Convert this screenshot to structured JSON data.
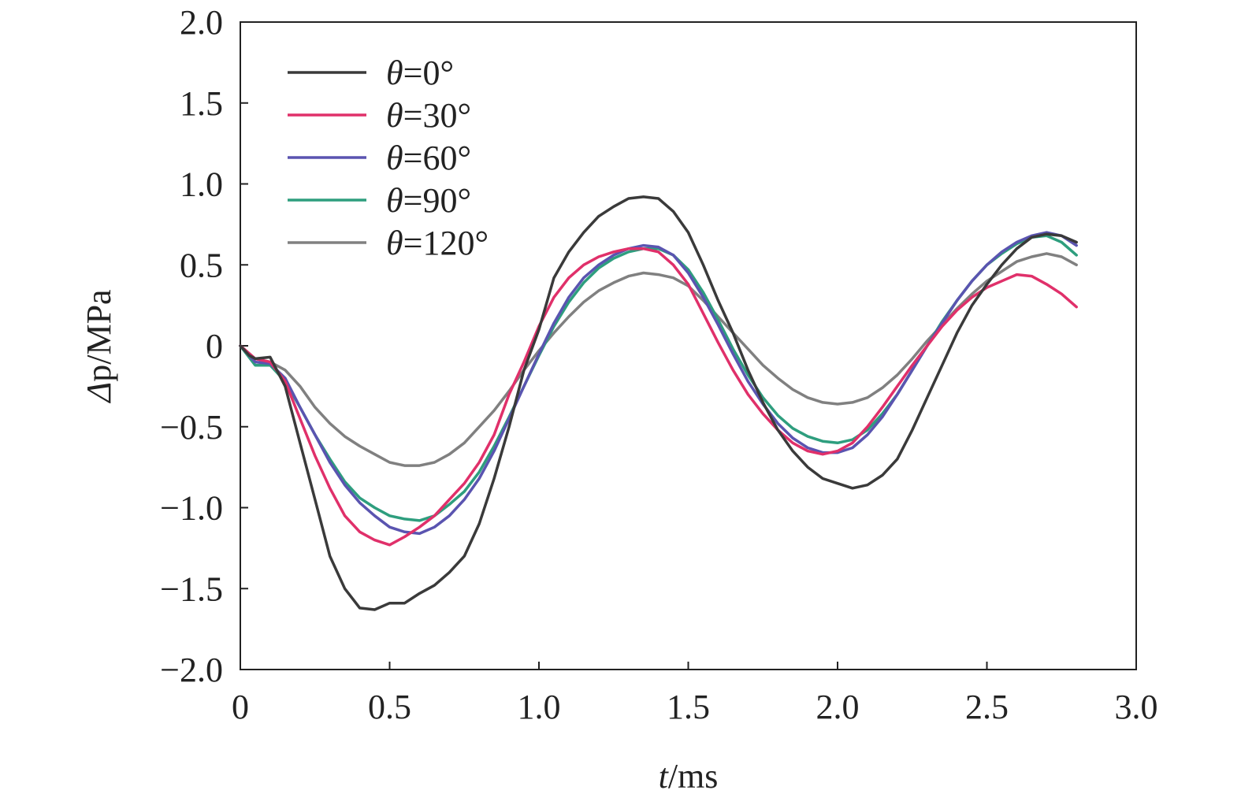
{
  "chart_data": {
    "type": "line",
    "xlabel_var": "t",
    "xlabel_unit": "/ms",
    "ylabel_var": "Δ",
    "ylabel_unit": "p/MPa",
    "xlim": [
      0,
      3.0
    ],
    "ylim": [
      -2.0,
      2.0
    ],
    "xticks": [
      0,
      0.5,
      1.0,
      1.5,
      2.0,
      2.5,
      3.0
    ],
    "xtick_labels": [
      "0",
      "0.5",
      "1.0",
      "1.5",
      "2.0",
      "2.5",
      "3.0"
    ],
    "yticks": [
      2.0,
      1.5,
      1.0,
      0.5,
      0,
      -0.5,
      -1.0,
      -1.5,
      -2.0
    ],
    "ytick_labels": [
      "2.0",
      "1.5",
      "1.0",
      "0.5",
      "0",
      "−0.5",
      "−1.0",
      "−1.5",
      "−2.0"
    ],
    "grid": false,
    "legend_position": "top-left",
    "series": [
      {
        "name_var": "θ",
        "name_value": "=0°",
        "color": "#3a3a3a",
        "points": [
          [
            0,
            0
          ],
          [
            0.03,
            -0.06
          ],
          [
            0.05,
            -0.08
          ],
          [
            0.1,
            -0.07
          ],
          [
            0.15,
            -0.25
          ],
          [
            0.2,
            -0.6
          ],
          [
            0.25,
            -0.95
          ],
          [
            0.3,
            -1.3
          ],
          [
            0.35,
            -1.5
          ],
          [
            0.4,
            -1.62
          ],
          [
            0.45,
            -1.63
          ],
          [
            0.5,
            -1.59
          ],
          [
            0.55,
            -1.59
          ],
          [
            0.6,
            -1.53
          ],
          [
            0.65,
            -1.48
          ],
          [
            0.7,
            -1.4
          ],
          [
            0.75,
            -1.3
          ],
          [
            0.8,
            -1.1
          ],
          [
            0.85,
            -0.82
          ],
          [
            0.9,
            -0.5
          ],
          [
            0.95,
            -0.15
          ],
          [
            1.0,
            0.1
          ],
          [
            1.05,
            0.42
          ],
          [
            1.1,
            0.58
          ],
          [
            1.15,
            0.7
          ],
          [
            1.2,
            0.8
          ],
          [
            1.25,
            0.86
          ],
          [
            1.3,
            0.91
          ],
          [
            1.35,
            0.92
          ],
          [
            1.4,
            0.91
          ],
          [
            1.45,
            0.83
          ],
          [
            1.5,
            0.7
          ],
          [
            1.55,
            0.5
          ],
          [
            1.6,
            0.28
          ],
          [
            1.65,
            0.08
          ],
          [
            1.7,
            -0.15
          ],
          [
            1.75,
            -0.35
          ],
          [
            1.8,
            -0.52
          ],
          [
            1.85,
            -0.65
          ],
          [
            1.9,
            -0.75
          ],
          [
            1.95,
            -0.82
          ],
          [
            2.0,
            -0.85
          ],
          [
            2.05,
            -0.88
          ],
          [
            2.1,
            -0.86
          ],
          [
            2.15,
            -0.8
          ],
          [
            2.2,
            -0.7
          ],
          [
            2.25,
            -0.52
          ],
          [
            2.3,
            -0.32
          ],
          [
            2.35,
            -0.12
          ],
          [
            2.4,
            0.08
          ],
          [
            2.45,
            0.25
          ],
          [
            2.5,
            0.38
          ],
          [
            2.55,
            0.5
          ],
          [
            2.6,
            0.6
          ],
          [
            2.65,
            0.67
          ],
          [
            2.7,
            0.69
          ],
          [
            2.75,
            0.68
          ],
          [
            2.8,
            0.64
          ]
        ]
      },
      {
        "name_var": "θ",
        "name_value": "=30°",
        "color": "#e0306a",
        "points": [
          [
            0,
            0
          ],
          [
            0.05,
            -0.08
          ],
          [
            0.1,
            -0.1
          ],
          [
            0.15,
            -0.22
          ],
          [
            0.2,
            -0.45
          ],
          [
            0.25,
            -0.68
          ],
          [
            0.3,
            -0.88
          ],
          [
            0.35,
            -1.05
          ],
          [
            0.4,
            -1.15
          ],
          [
            0.45,
            -1.2
          ],
          [
            0.5,
            -1.23
          ],
          [
            0.55,
            -1.18
          ],
          [
            0.6,
            -1.12
          ],
          [
            0.65,
            -1.05
          ],
          [
            0.7,
            -0.95
          ],
          [
            0.75,
            -0.85
          ],
          [
            0.8,
            -0.72
          ],
          [
            0.85,
            -0.55
          ],
          [
            0.9,
            -0.3
          ],
          [
            0.95,
            -0.1
          ],
          [
            1.0,
            0.12
          ],
          [
            1.05,
            0.3
          ],
          [
            1.1,
            0.42
          ],
          [
            1.15,
            0.5
          ],
          [
            1.2,
            0.55
          ],
          [
            1.25,
            0.58
          ],
          [
            1.3,
            0.6
          ],
          [
            1.35,
            0.6
          ],
          [
            1.4,
            0.58
          ],
          [
            1.45,
            0.5
          ],
          [
            1.5,
            0.38
          ],
          [
            1.55,
            0.2
          ],
          [
            1.6,
            0.02
          ],
          [
            1.65,
            -0.15
          ],
          [
            1.7,
            -0.3
          ],
          [
            1.75,
            -0.42
          ],
          [
            1.8,
            -0.52
          ],
          [
            1.85,
            -0.6
          ],
          [
            1.9,
            -0.65
          ],
          [
            1.95,
            -0.67
          ],
          [
            2.0,
            -0.65
          ],
          [
            2.05,
            -0.6
          ],
          [
            2.1,
            -0.5
          ],
          [
            2.15,
            -0.38
          ],
          [
            2.2,
            -0.25
          ],
          [
            2.25,
            -0.12
          ],
          [
            2.3,
            0.0
          ],
          [
            2.35,
            0.12
          ],
          [
            2.4,
            0.22
          ],
          [
            2.45,
            0.3
          ],
          [
            2.5,
            0.36
          ],
          [
            2.55,
            0.4
          ],
          [
            2.6,
            0.44
          ],
          [
            2.65,
            0.43
          ],
          [
            2.7,
            0.38
          ],
          [
            2.75,
            0.32
          ],
          [
            2.8,
            0.24
          ]
        ]
      },
      {
        "name_var": "θ",
        "name_value": "=60°",
        "color": "#5a54b0",
        "points": [
          [
            0,
            0
          ],
          [
            0.05,
            -0.1
          ],
          [
            0.1,
            -0.11
          ],
          [
            0.15,
            -0.2
          ],
          [
            0.2,
            -0.38
          ],
          [
            0.25,
            -0.55
          ],
          [
            0.3,
            -0.72
          ],
          [
            0.35,
            -0.86
          ],
          [
            0.4,
            -0.97
          ],
          [
            0.45,
            -1.05
          ],
          [
            0.5,
            -1.12
          ],
          [
            0.55,
            -1.15
          ],
          [
            0.6,
            -1.16
          ],
          [
            0.65,
            -1.12
          ],
          [
            0.7,
            -1.05
          ],
          [
            0.75,
            -0.95
          ],
          [
            0.8,
            -0.82
          ],
          [
            0.85,
            -0.65
          ],
          [
            0.9,
            -0.45
          ],
          [
            0.95,
            -0.25
          ],
          [
            1.0,
            -0.05
          ],
          [
            1.05,
            0.14
          ],
          [
            1.1,
            0.3
          ],
          [
            1.15,
            0.42
          ],
          [
            1.2,
            0.5
          ],
          [
            1.25,
            0.56
          ],
          [
            1.3,
            0.6
          ],
          [
            1.35,
            0.62
          ],
          [
            1.4,
            0.61
          ],
          [
            1.45,
            0.56
          ],
          [
            1.5,
            0.45
          ],
          [
            1.55,
            0.3
          ],
          [
            1.6,
            0.13
          ],
          [
            1.65,
            -0.05
          ],
          [
            1.7,
            -0.22
          ],
          [
            1.75,
            -0.36
          ],
          [
            1.8,
            -0.48
          ],
          [
            1.85,
            -0.57
          ],
          [
            1.9,
            -0.63
          ],
          [
            1.95,
            -0.66
          ],
          [
            2.0,
            -0.66
          ],
          [
            2.05,
            -0.63
          ],
          [
            2.1,
            -0.55
          ],
          [
            2.15,
            -0.44
          ],
          [
            2.2,
            -0.3
          ],
          [
            2.25,
            -0.15
          ],
          [
            2.3,
            0.0
          ],
          [
            2.35,
            0.14
          ],
          [
            2.4,
            0.28
          ],
          [
            2.45,
            0.4
          ],
          [
            2.5,
            0.5
          ],
          [
            2.55,
            0.58
          ],
          [
            2.6,
            0.64
          ],
          [
            2.65,
            0.68
          ],
          [
            2.7,
            0.7
          ],
          [
            2.75,
            0.68
          ],
          [
            2.8,
            0.62
          ]
        ]
      },
      {
        "name_var": "θ",
        "name_value": "=90°",
        "color": "#2e9e7e",
        "points": [
          [
            0,
            0
          ],
          [
            0.05,
            -0.12
          ],
          [
            0.1,
            -0.12
          ],
          [
            0.15,
            -0.22
          ],
          [
            0.2,
            -0.38
          ],
          [
            0.25,
            -0.55
          ],
          [
            0.3,
            -0.7
          ],
          [
            0.35,
            -0.84
          ],
          [
            0.4,
            -0.94
          ],
          [
            0.45,
            -1.0
          ],
          [
            0.5,
            -1.05
          ],
          [
            0.55,
            -1.07
          ],
          [
            0.6,
            -1.08
          ],
          [
            0.65,
            -1.05
          ],
          [
            0.7,
            -0.98
          ],
          [
            0.75,
            -0.9
          ],
          [
            0.8,
            -0.78
          ],
          [
            0.85,
            -0.62
          ],
          [
            0.9,
            -0.44
          ],
          [
            0.95,
            -0.25
          ],
          [
            1.0,
            -0.06
          ],
          [
            1.05,
            0.12
          ],
          [
            1.1,
            0.27
          ],
          [
            1.15,
            0.39
          ],
          [
            1.2,
            0.48
          ],
          [
            1.25,
            0.54
          ],
          [
            1.3,
            0.58
          ],
          [
            1.35,
            0.6
          ],
          [
            1.4,
            0.6
          ],
          [
            1.45,
            0.56
          ],
          [
            1.5,
            0.47
          ],
          [
            1.55,
            0.33
          ],
          [
            1.6,
            0.16
          ],
          [
            1.65,
            -0.02
          ],
          [
            1.7,
            -0.18
          ],
          [
            1.75,
            -0.32
          ],
          [
            1.8,
            -0.43
          ],
          [
            1.85,
            -0.51
          ],
          [
            1.9,
            -0.56
          ],
          [
            1.95,
            -0.59
          ],
          [
            2.0,
            -0.6
          ],
          [
            2.05,
            -0.58
          ],
          [
            2.1,
            -0.52
          ],
          [
            2.15,
            -0.42
          ],
          [
            2.2,
            -0.3
          ],
          [
            2.25,
            -0.15
          ],
          [
            2.3,
            0.0
          ],
          [
            2.35,
            0.15
          ],
          [
            2.4,
            0.28
          ],
          [
            2.45,
            0.4
          ],
          [
            2.5,
            0.5
          ],
          [
            2.55,
            0.57
          ],
          [
            2.6,
            0.63
          ],
          [
            2.65,
            0.67
          ],
          [
            2.7,
            0.68
          ],
          [
            2.75,
            0.64
          ],
          [
            2.8,
            0.56
          ]
        ]
      },
      {
        "name_var": "θ",
        "name_value": "=120°",
        "color": "#808080",
        "points": [
          [
            0,
            0
          ],
          [
            0.05,
            -0.08
          ],
          [
            0.1,
            -0.1
          ],
          [
            0.15,
            -0.15
          ],
          [
            0.2,
            -0.25
          ],
          [
            0.25,
            -0.38
          ],
          [
            0.3,
            -0.48
          ],
          [
            0.35,
            -0.56
          ],
          [
            0.4,
            -0.62
          ],
          [
            0.45,
            -0.67
          ],
          [
            0.5,
            -0.72
          ],
          [
            0.55,
            -0.74
          ],
          [
            0.6,
            -0.74
          ],
          [
            0.65,
            -0.72
          ],
          [
            0.7,
            -0.67
          ],
          [
            0.75,
            -0.6
          ],
          [
            0.8,
            -0.5
          ],
          [
            0.85,
            -0.4
          ],
          [
            0.9,
            -0.28
          ],
          [
            0.95,
            -0.15
          ],
          [
            1.0,
            -0.03
          ],
          [
            1.05,
            0.08
          ],
          [
            1.1,
            0.18
          ],
          [
            1.15,
            0.27
          ],
          [
            1.2,
            0.34
          ],
          [
            1.25,
            0.39
          ],
          [
            1.3,
            0.43
          ],
          [
            1.35,
            0.45
          ],
          [
            1.4,
            0.44
          ],
          [
            1.45,
            0.42
          ],
          [
            1.5,
            0.37
          ],
          [
            1.55,
            0.28
          ],
          [
            1.6,
            0.18
          ],
          [
            1.65,
            0.08
          ],
          [
            1.7,
            -0.02
          ],
          [
            1.75,
            -0.12
          ],
          [
            1.8,
            -0.2
          ],
          [
            1.85,
            -0.27
          ],
          [
            1.9,
            -0.32
          ],
          [
            1.95,
            -0.35
          ],
          [
            2.0,
            -0.36
          ],
          [
            2.05,
            -0.35
          ],
          [
            2.1,
            -0.32
          ],
          [
            2.15,
            -0.26
          ],
          [
            2.2,
            -0.18
          ],
          [
            2.25,
            -0.08
          ],
          [
            2.3,
            0.03
          ],
          [
            2.35,
            0.13
          ],
          [
            2.4,
            0.23
          ],
          [
            2.45,
            0.32
          ],
          [
            2.5,
            0.4
          ],
          [
            2.55,
            0.46
          ],
          [
            2.6,
            0.52
          ],
          [
            2.65,
            0.55
          ],
          [
            2.7,
            0.57
          ],
          [
            2.75,
            0.55
          ],
          [
            2.8,
            0.5
          ]
        ]
      }
    ]
  }
}
